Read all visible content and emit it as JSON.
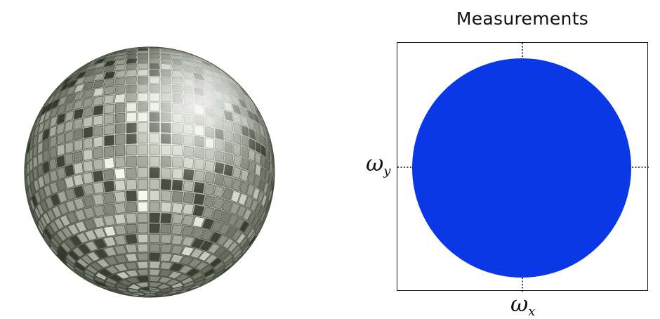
{
  "panel": {
    "title": "Measurements"
  },
  "axes": {
    "y_symbol": "ω",
    "y_subscript": "y",
    "x_symbol": "ω",
    "x_subscript": "x"
  },
  "colors": {
    "measurement_disk": "#0b38e6",
    "frame": "#1a1a1a",
    "background": "#ffffff"
  }
}
